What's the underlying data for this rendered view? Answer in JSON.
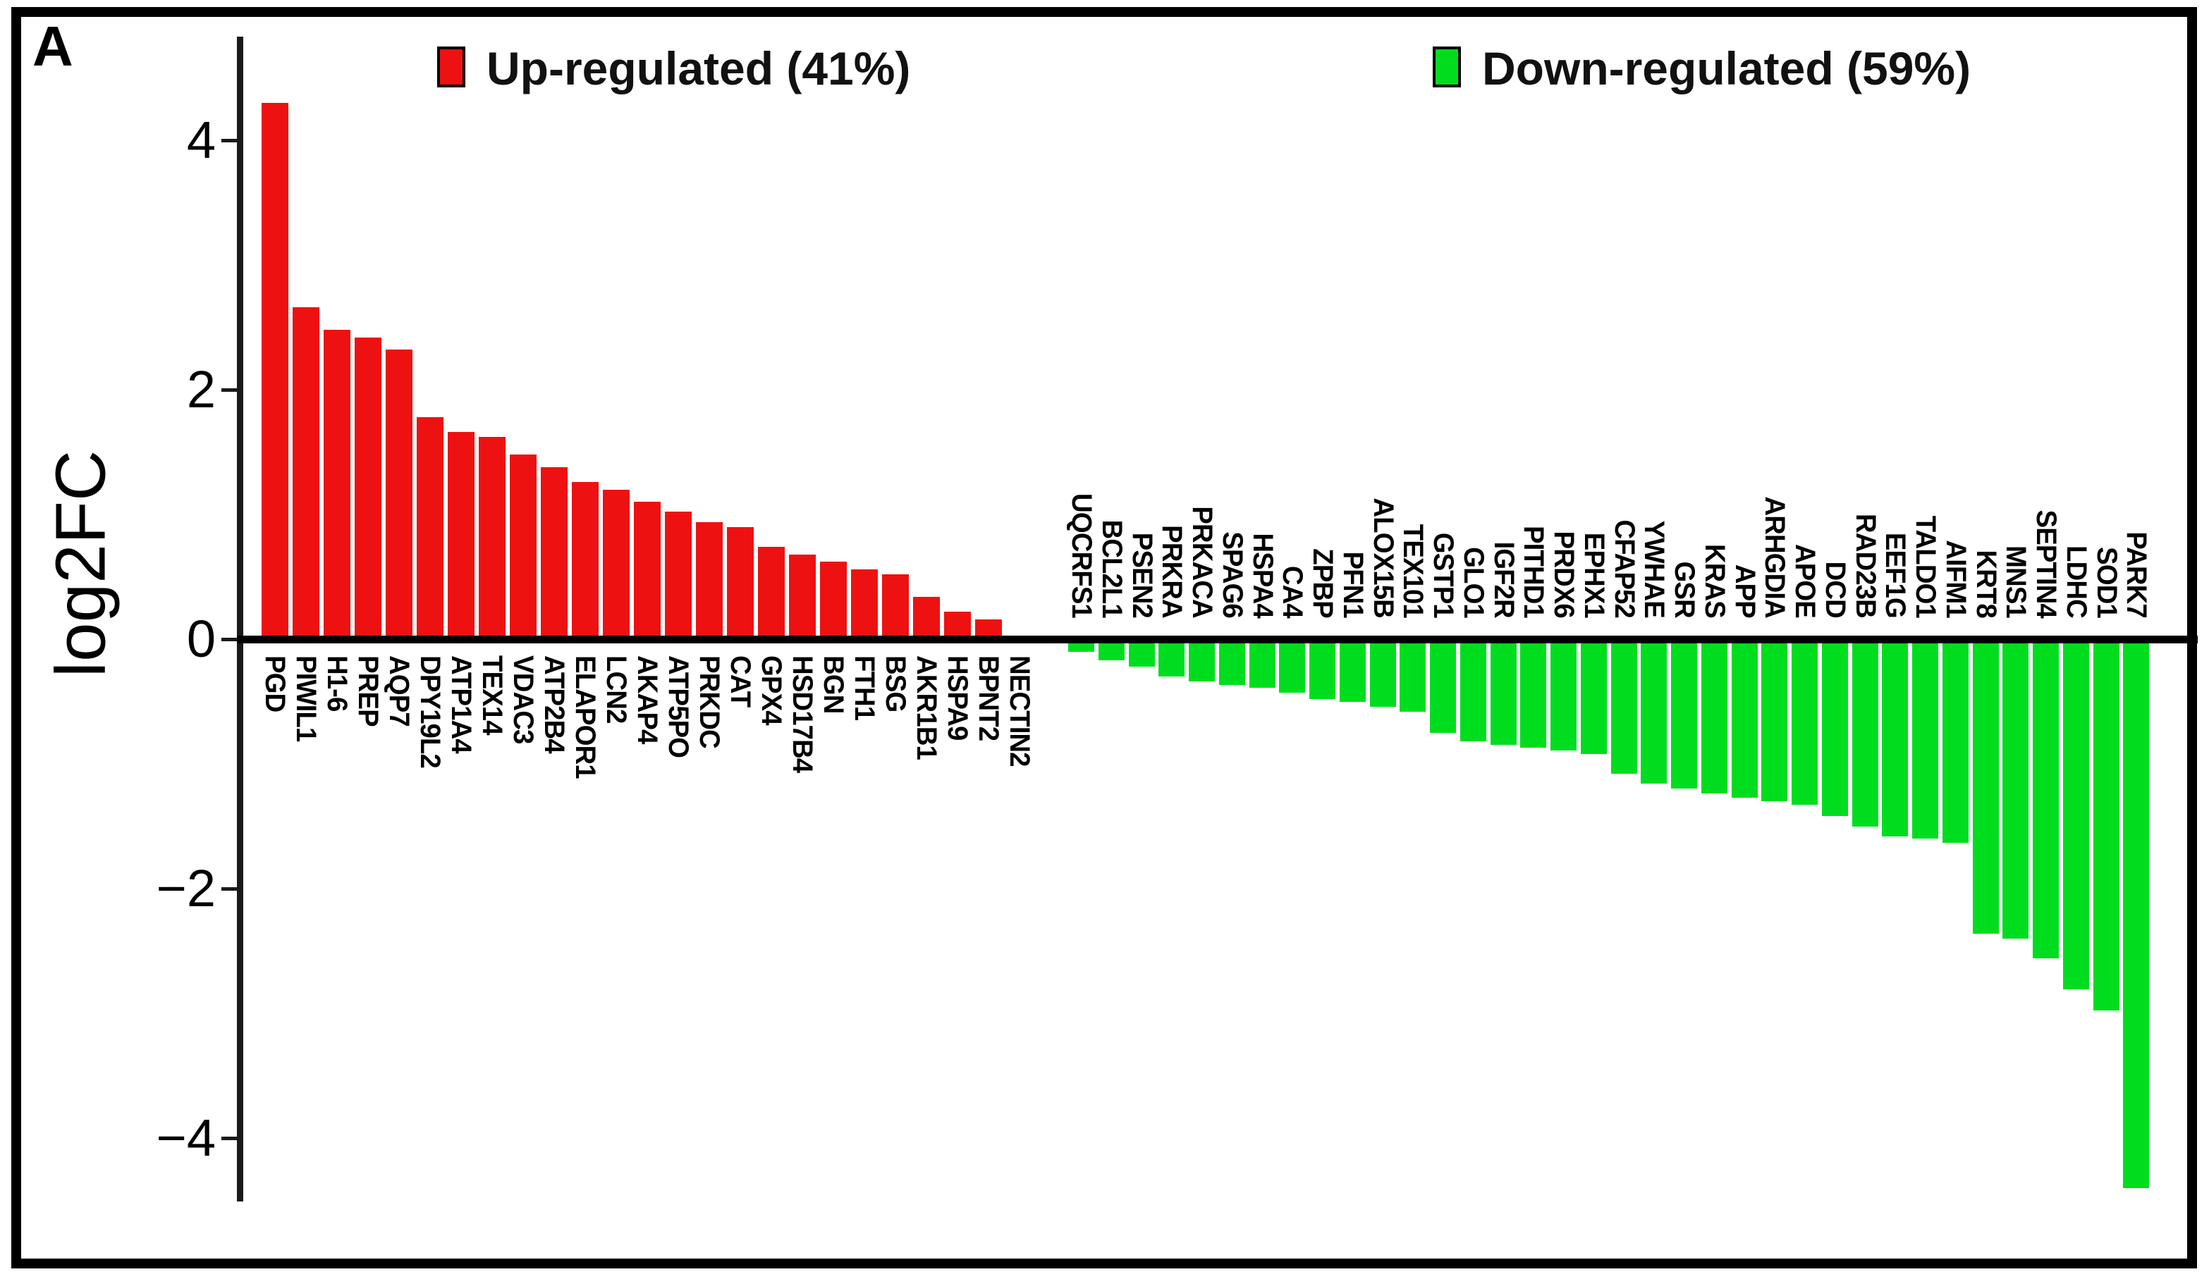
{
  "figure": {
    "panel_label": "A"
  },
  "y_axis": {
    "label": "log2FC",
    "ticks": [
      4,
      2,
      0,
      -2,
      -4
    ]
  },
  "legend": {
    "up": {
      "label": "Up-regulated (41%)",
      "color": "#ee1111"
    },
    "down": {
      "label": "Down-regulated (59%)",
      "color": "#00dd1e"
    }
  },
  "chart_data": {
    "type": "bar",
    "ylabel": "log2FC",
    "ylim": [
      -4.7,
      4.5
    ],
    "grid": false,
    "legend_position": "top-inside",
    "series": [
      {
        "name": "Up-regulated (41%)",
        "color": "#ee1111",
        "direction": "up",
        "genes": [
          "PGD",
          "PIWIL1",
          "H1-6",
          "PREP",
          "AQP7",
          "DPY19L2",
          "ATP1A4",
          "TEX14",
          "VDAC3",
          "ATP2B4",
          "ELAPOR1",
          "LCN2",
          "AKAP4",
          "ATP5PO",
          "PRKDC",
          "CAT",
          "GPX4",
          "HSD17B4",
          "BGN",
          "FTH1",
          "BSG",
          "AKR1B1",
          "HSPA9",
          "BPNT2",
          "NECTIN2"
        ],
        "values": [
          4.3,
          2.66,
          2.48,
          2.42,
          2.32,
          1.78,
          1.66,
          1.62,
          1.48,
          1.38,
          1.26,
          1.2,
          1.1,
          1.02,
          0.94,
          0.9,
          0.74,
          0.68,
          0.62,
          0.56,
          0.52,
          0.34,
          0.22,
          0.16,
          0.03
        ]
      },
      {
        "name": "Down-regulated (59%)",
        "color": "#00dd1e",
        "direction": "down",
        "genes": [
          "UQCRFS1",
          "BCL2L1",
          "PSEN2",
          "PRKRA",
          "PRKACA",
          "SPAG6",
          "HSPA4",
          "CA4",
          "ZPBP",
          "PFN1",
          "ALOX15B",
          "TEX101",
          "GSTP1",
          "GLO1",
          "IGF2R",
          "PITHD1",
          "PRDX6",
          "EPHX1",
          "CFAP52",
          "YWHAE",
          "GSR",
          "KRAS",
          "APP",
          "ARHGDIA",
          "APOE",
          "DCD",
          "RAD23B",
          "EEF1G",
          "TALDO1",
          "AIFM1",
          "KRT8",
          "MNS1",
          "SEPTIN4",
          "LDHC",
          "SOD1",
          "PARK7"
        ],
        "values": [
          -0.1,
          -0.17,
          -0.22,
          -0.3,
          -0.34,
          -0.37,
          -0.39,
          -0.43,
          -0.48,
          -0.5,
          -0.54,
          -0.58,
          -0.75,
          -0.82,
          -0.85,
          -0.87,
          -0.89,
          -0.92,
          -1.08,
          -1.16,
          -1.2,
          -1.24,
          -1.27,
          -1.3,
          -1.33,
          -1.42,
          -1.5,
          -1.58,
          -1.6,
          -1.63,
          -2.36,
          -2.4,
          -2.56,
          -2.81,
          -2.98,
          -4.4
        ]
      }
    ]
  }
}
